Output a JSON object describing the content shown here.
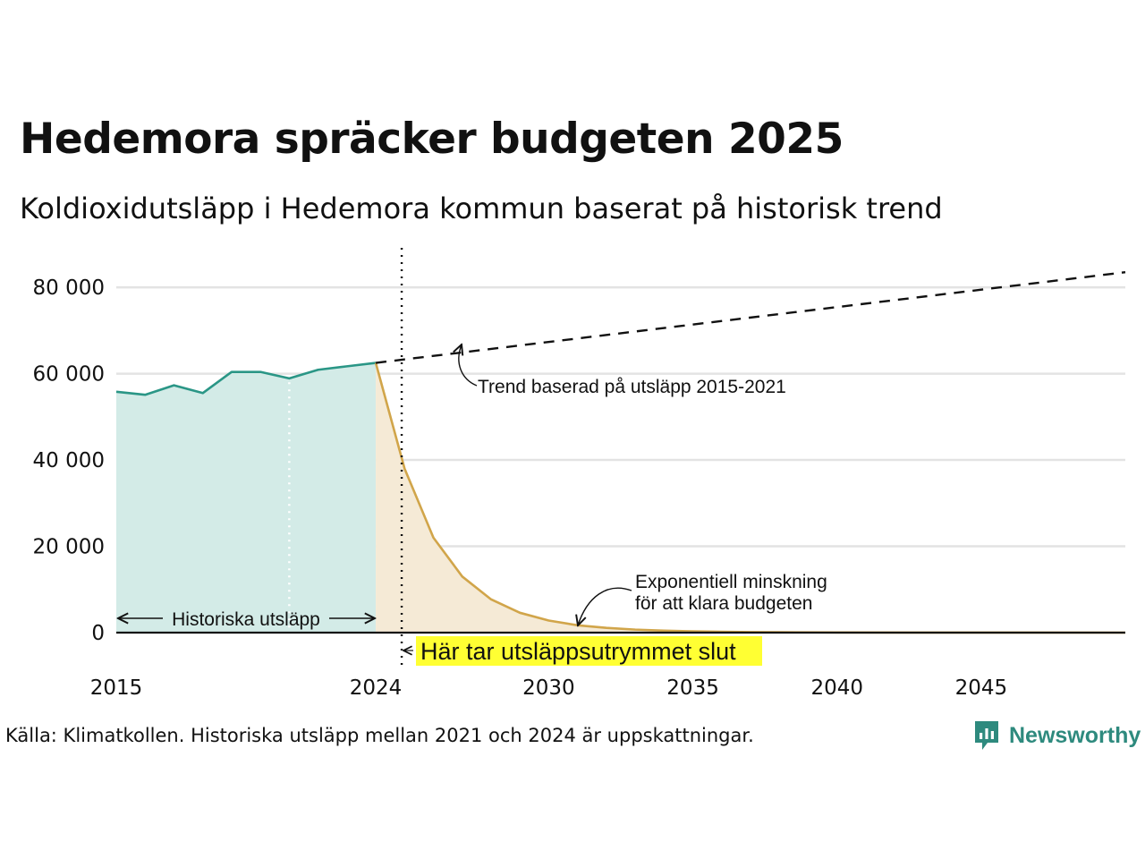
{
  "header": {
    "title": "Hedemora spräcker budgeten 2025",
    "subtitle": "Koldioxidutsläpp i Hedemora kommun baserat på historisk trend"
  },
  "footer": {
    "source": "Källa: Klimatkollen. Historiska utsläpp mellan 2021 och 2024 är uppskattningar.",
    "logo_text": "Newsworthy"
  },
  "colors": {
    "historical_line": "#2a9686",
    "historical_fill": "#d3ebe7",
    "budget_line": "#d1a54a",
    "budget_fill": "#f5ead6",
    "trend_line": "#111111",
    "gridline": "#e3e3e3",
    "highlight": "#ffff33",
    "logo": "#2e8a7e"
  },
  "chart_data": {
    "type": "area",
    "xlim": [
      2015,
      2050
    ],
    "ylim": [
      0,
      85000
    ],
    "grid": true,
    "x_ticks": [
      2015,
      2024,
      2030,
      2035,
      2040,
      2045
    ],
    "x_tick_labels": [
      "2015",
      "2024",
      "2030",
      "2035",
      "2040",
      "2045"
    ],
    "y_ticks": [
      0,
      20000,
      40000,
      60000,
      80000
    ],
    "y_tick_labels": [
      "0",
      "20 000",
      "40 000",
      "60 000",
      "80 000"
    ],
    "series": [
      {
        "key": "historical",
        "x": [
          2015,
          2016,
          2017,
          2018,
          2019,
          2020,
          2021,
          2022,
          2023,
          2024
        ],
        "y": [
          55800,
          55100,
          57300,
          55500,
          60400,
          60400,
          58900,
          60900,
          61700,
          62500
        ]
      },
      {
        "key": "budget",
        "x": [
          2024,
          2025,
          2026,
          2027,
          2028,
          2029,
          2030,
          2031,
          2032,
          2033,
          2034,
          2035,
          2036,
          2037,
          2038,
          2040,
          2045,
          2050
        ],
        "y": [
          62500,
          38000,
          22000,
          13000,
          7700,
          4600,
          2800,
          1700,
          1100,
          700,
          450,
          300,
          200,
          130,
          90,
          40,
          5,
          0
        ]
      },
      {
        "key": "trend",
        "x": [
          2024,
          2050
        ],
        "y": [
          62500,
          83500
        ]
      }
    ],
    "markers": {
      "budget_end_year": 2024.9,
      "estimate_start_year": 2021
    },
    "annotations": {
      "trend": "Trend baserad på utsläpp 2015-2021",
      "exponential_line1": "Exponentiell minskning",
      "exponential_line2": "för att klara budgeten",
      "historical": "Historiska utsläpp",
      "budget_end": "Här tar utsläppsutrymmet slut"
    }
  }
}
